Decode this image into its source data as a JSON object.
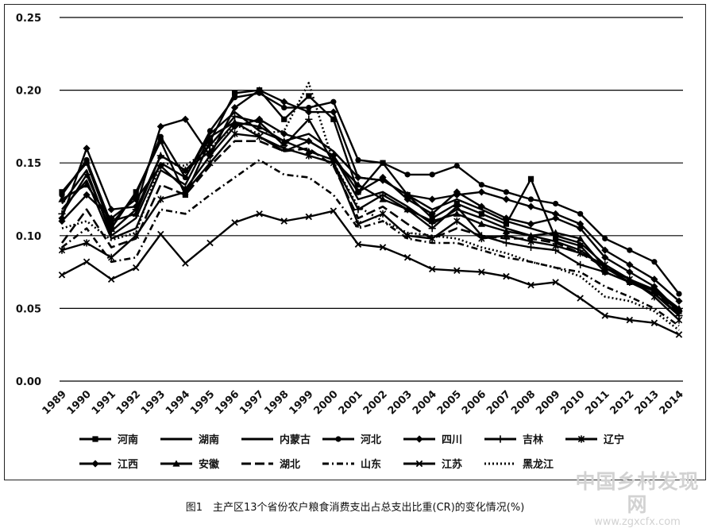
{
  "caption": "图1　主产区13个省份农户粮食消费支出占总支出比重(CR)的变化情况(%)",
  "watermark": {
    "line1": "中国乡村发现网",
    "line2": "www.zgxcfx.com"
  },
  "chart_data": {
    "type": "line",
    "title": "",
    "xlabel": "",
    "ylabel": "",
    "ylim": [
      0,
      0.25
    ],
    "yticks": [
      "0.00",
      "0.05",
      "0.10",
      "0.15",
      "0.20",
      "0.25"
    ],
    "grid": "horizontal",
    "legend_position": "bottom",
    "categories": [
      "1989",
      "1990",
      "1991",
      "1992",
      "1993",
      "1994",
      "1995",
      "1996",
      "1997",
      "1998",
      "1999",
      "2000",
      "2001",
      "2002",
      "2003",
      "2004",
      "2005",
      "2006",
      "2007",
      "2008",
      "2009",
      "2010",
      "2011",
      "2012",
      "2013",
      "2014"
    ],
    "series": [
      {
        "name": "河南",
        "marker": "square",
        "dash": "solid",
        "values": [
          0.13,
          0.15,
          0.105,
          0.13,
          0.165,
          0.128,
          0.165,
          0.198,
          0.2,
          0.18,
          0.196,
          0.18,
          0.13,
          0.15,
          0.128,
          0.112,
          0.122,
          0.115,
          0.108,
          0.139,
          0.098,
          0.093,
          0.075,
          0.068,
          0.062,
          0.048
        ]
      },
      {
        "name": "湖南",
        "marker": "none",
        "dash": "solid",
        "values": [
          0.122,
          0.145,
          0.1,
          0.112,
          0.15,
          0.14,
          0.17,
          0.185,
          0.172,
          0.165,
          0.17,
          0.158,
          0.14,
          0.138,
          0.128,
          0.118,
          0.125,
          0.118,
          0.11,
          0.105,
          0.1,
          0.095,
          0.08,
          0.07,
          0.062,
          0.05
        ]
      },
      {
        "name": "内蒙古",
        "marker": "none",
        "dash": "solid",
        "values": [
          0.118,
          0.138,
          0.098,
          0.105,
          0.145,
          0.135,
          0.168,
          0.178,
          0.168,
          0.158,
          0.165,
          0.155,
          0.125,
          0.13,
          0.12,
          0.108,
          0.118,
          0.112,
          0.105,
          0.1,
          0.096,
          0.09,
          0.078,
          0.068,
          0.06,
          0.046
        ]
      },
      {
        "name": "河北",
        "marker": "circle",
        "dash": "solid",
        "values": [
          0.128,
          0.152,
          0.108,
          0.128,
          0.168,
          0.14,
          0.172,
          0.195,
          0.198,
          0.188,
          0.188,
          0.192,
          0.152,
          0.15,
          0.142,
          0.142,
          0.148,
          0.135,
          0.13,
          0.125,
          0.122,
          0.115,
          0.098,
          0.09,
          0.082,
          0.06
        ]
      },
      {
        "name": "四川",
        "marker": "diamond",
        "dash": "solid",
        "values": [
          0.112,
          0.16,
          0.118,
          0.12,
          0.175,
          0.18,
          0.155,
          0.188,
          0.2,
          0.192,
          0.185,
          0.185,
          0.14,
          0.138,
          0.128,
          0.125,
          0.128,
          0.13,
          0.125,
          0.12,
          0.115,
          0.108,
          0.09,
          0.08,
          0.07,
          0.055
        ]
      },
      {
        "name": "吉林",
        "marker": "plus",
        "dash": "solid",
        "values": [
          0.115,
          0.142,
          0.103,
          0.118,
          0.155,
          0.145,
          0.162,
          0.182,
          0.178,
          0.162,
          0.18,
          0.15,
          0.118,
          0.128,
          0.118,
          0.105,
          0.12,
          0.1,
          0.095,
          0.092,
          0.09,
          0.08,
          0.075,
          0.068,
          0.06,
          0.045
        ]
      },
      {
        "name": "辽宁",
        "marker": "asterisk",
        "dash": "solid",
        "values": [
          0.09,
          0.095,
          0.085,
          0.1,
          0.125,
          0.13,
          0.15,
          0.17,
          0.168,
          0.16,
          0.155,
          0.15,
          0.108,
          0.115,
          0.1,
          0.098,
          0.11,
          0.098,
          0.1,
          0.096,
          0.093,
          0.088,
          0.08,
          0.07,
          0.058,
          0.042
        ]
      },
      {
        "name": "江西",
        "marker": "diamond",
        "dash": "solid",
        "values": [
          0.11,
          0.128,
          0.112,
          0.125,
          0.148,
          0.132,
          0.155,
          0.175,
          0.18,
          0.17,
          0.165,
          0.155,
          0.13,
          0.14,
          0.125,
          0.115,
          0.13,
          0.12,
          0.112,
          0.108,
          0.112,
          0.105,
          0.085,
          0.075,
          0.065,
          0.048
        ]
      },
      {
        "name": "安徽",
        "marker": "triangle",
        "dash": "solid",
        "values": [
          0.125,
          0.135,
          0.11,
          0.115,
          0.155,
          0.145,
          0.158,
          0.178,
          0.175,
          0.165,
          0.158,
          0.152,
          0.135,
          0.125,
          0.118,
          0.11,
          0.115,
          0.108,
          0.103,
          0.1,
          0.102,
          0.098,
          0.078,
          0.07,
          0.063,
          0.05
        ]
      },
      {
        "name": "湖北",
        "marker": "none",
        "dash": "longdash",
        "values": [
          0.095,
          0.118,
          0.092,
          0.098,
          0.135,
          0.128,
          0.148,
          0.165,
          0.165,
          0.158,
          0.16,
          0.148,
          0.112,
          0.12,
          0.108,
          0.098,
          0.105,
          0.1,
          0.098,
          0.098,
          0.095,
          0.088,
          0.078,
          0.07,
          0.062,
          0.046
        ]
      },
      {
        "name": "山东",
        "marker": "none",
        "dash": "dashdot",
        "values": [
          0.092,
          0.105,
          0.082,
          0.085,
          0.118,
          0.115,
          0.128,
          0.14,
          0.152,
          0.142,
          0.14,
          0.128,
          0.105,
          0.11,
          0.098,
          0.095,
          0.095,
          0.09,
          0.085,
          0.082,
          0.078,
          0.075,
          0.065,
          0.058,
          0.05,
          0.038
        ]
      },
      {
        "name": "江苏",
        "marker": "x",
        "dash": "solid",
        "values": [
          0.073,
          0.082,
          0.07,
          0.078,
          0.101,
          0.081,
          0.095,
          0.109,
          0.115,
          0.11,
          0.113,
          0.117,
          0.094,
          0.092,
          0.085,
          0.077,
          0.076,
          0.075,
          0.072,
          0.066,
          0.068,
          0.057,
          0.045,
          0.042,
          0.04,
          0.032
        ]
      },
      {
        "name": "黑龙江",
        "marker": "none",
        "dash": "dotted",
        "values": [
          0.105,
          0.11,
          0.097,
          0.102,
          0.15,
          0.148,
          0.16,
          0.176,
          0.17,
          0.172,
          0.205,
          0.15,
          0.12,
          0.11,
          0.102,
          0.1,
          0.098,
          0.092,
          0.088,
          0.082,
          0.078,
          0.072,
          0.058,
          0.055,
          0.048,
          0.035
        ]
      }
    ]
  }
}
